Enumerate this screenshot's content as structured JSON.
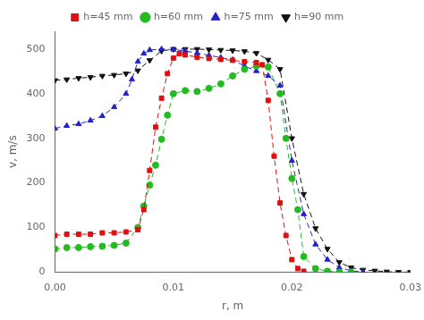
{
  "chart_data": {
    "type": "line",
    "title": "",
    "x_label": "r, m",
    "y_label": "v, m/s",
    "xlim": [
      0.0,
      0.03
    ],
    "ylim": [
      0,
      540
    ],
    "xticks": [
      {
        "value": 0.0,
        "label": "0.00"
      },
      {
        "value": 0.01,
        "label": "0.01"
      },
      {
        "value": 0.02,
        "label": "0.02"
      },
      {
        "value": 0.03,
        "label": "0.03"
      }
    ],
    "yticks": [
      0,
      100,
      200,
      300,
      400,
      500
    ],
    "grid": false,
    "legend": "top",
    "line_style": "dashed",
    "series": [
      {
        "name": "h=45 mm",
        "color": "#dd1111",
        "marker": "square",
        "x": [
          0.0,
          0.001,
          0.002,
          0.003,
          0.004,
          0.005,
          0.006,
          0.007,
          0.0075,
          0.008,
          0.0085,
          0.009,
          0.0095,
          0.01,
          0.0105,
          0.011,
          0.012,
          0.013,
          0.014,
          0.015,
          0.016,
          0.017,
          0.0175,
          0.018,
          0.0185,
          0.019,
          0.0195,
          0.02,
          0.0205,
          0.021
        ],
        "values": [
          82,
          85,
          85,
          85,
          88,
          88,
          90,
          95,
          140,
          228,
          325,
          390,
          445,
          480,
          490,
          487,
          482,
          479,
          477,
          475,
          472,
          470,
          465,
          385,
          260,
          155,
          82,
          28,
          8,
          2
        ]
      },
      {
        "name": "h=60 mm",
        "color": "#22bb22",
        "marker": "circle",
        "x": [
          0.0,
          0.001,
          0.002,
          0.003,
          0.004,
          0.005,
          0.006,
          0.007,
          0.0075,
          0.008,
          0.0085,
          0.009,
          0.0095,
          0.01,
          0.011,
          0.012,
          0.013,
          0.014,
          0.015,
          0.016,
          0.017,
          0.018,
          0.019,
          0.0195,
          0.02,
          0.0205,
          0.021,
          0.022,
          0.023,
          0.024,
          0.025
        ],
        "values": [
          52,
          55,
          55,
          57,
          58,
          60,
          65,
          100,
          148,
          195,
          240,
          298,
          352,
          400,
          407,
          405,
          412,
          422,
          440,
          455,
          462,
          460,
          400,
          300,
          210,
          140,
          35,
          8,
          2,
          0,
          0
        ]
      },
      {
        "name": "h=75 mm",
        "color": "#2222cc",
        "marker": "triangle_up",
        "x": [
          0.0,
          0.001,
          0.002,
          0.003,
          0.004,
          0.005,
          0.006,
          0.0065,
          0.007,
          0.0075,
          0.008,
          0.009,
          0.01,
          0.011,
          0.012,
          0.013,
          0.014,
          0.015,
          0.016,
          0.017,
          0.018,
          0.019,
          0.02,
          0.021,
          0.022,
          0.023,
          0.024,
          0.025,
          0.026
        ],
        "values": [
          322,
          328,
          332,
          340,
          350,
          370,
          400,
          432,
          472,
          490,
          498,
          500,
          499,
          496,
          491,
          486,
          481,
          476,
          462,
          451,
          440,
          418,
          250,
          130,
          62,
          28,
          10,
          3,
          0
        ]
      },
      {
        "name": "h=90 mm",
        "color": "#111111",
        "marker": "triangle_down",
        "x": [
          0.0,
          0.001,
          0.002,
          0.003,
          0.004,
          0.005,
          0.006,
          0.007,
          0.008,
          0.009,
          0.01,
          0.011,
          0.012,
          0.013,
          0.014,
          0.015,
          0.016,
          0.017,
          0.018,
          0.019,
          0.02,
          0.021,
          0.022,
          0.023,
          0.024,
          0.025,
          0.026,
          0.027,
          0.028,
          0.029,
          0.03
        ],
        "values": [
          430,
          432,
          435,
          437,
          440,
          442,
          445,
          452,
          475,
          496,
          500,
          500,
          500,
          499,
          498,
          497,
          495,
          491,
          476,
          455,
          300,
          175,
          98,
          52,
          22,
          10,
          5,
          3,
          1,
          0,
          0
        ]
      }
    ]
  }
}
